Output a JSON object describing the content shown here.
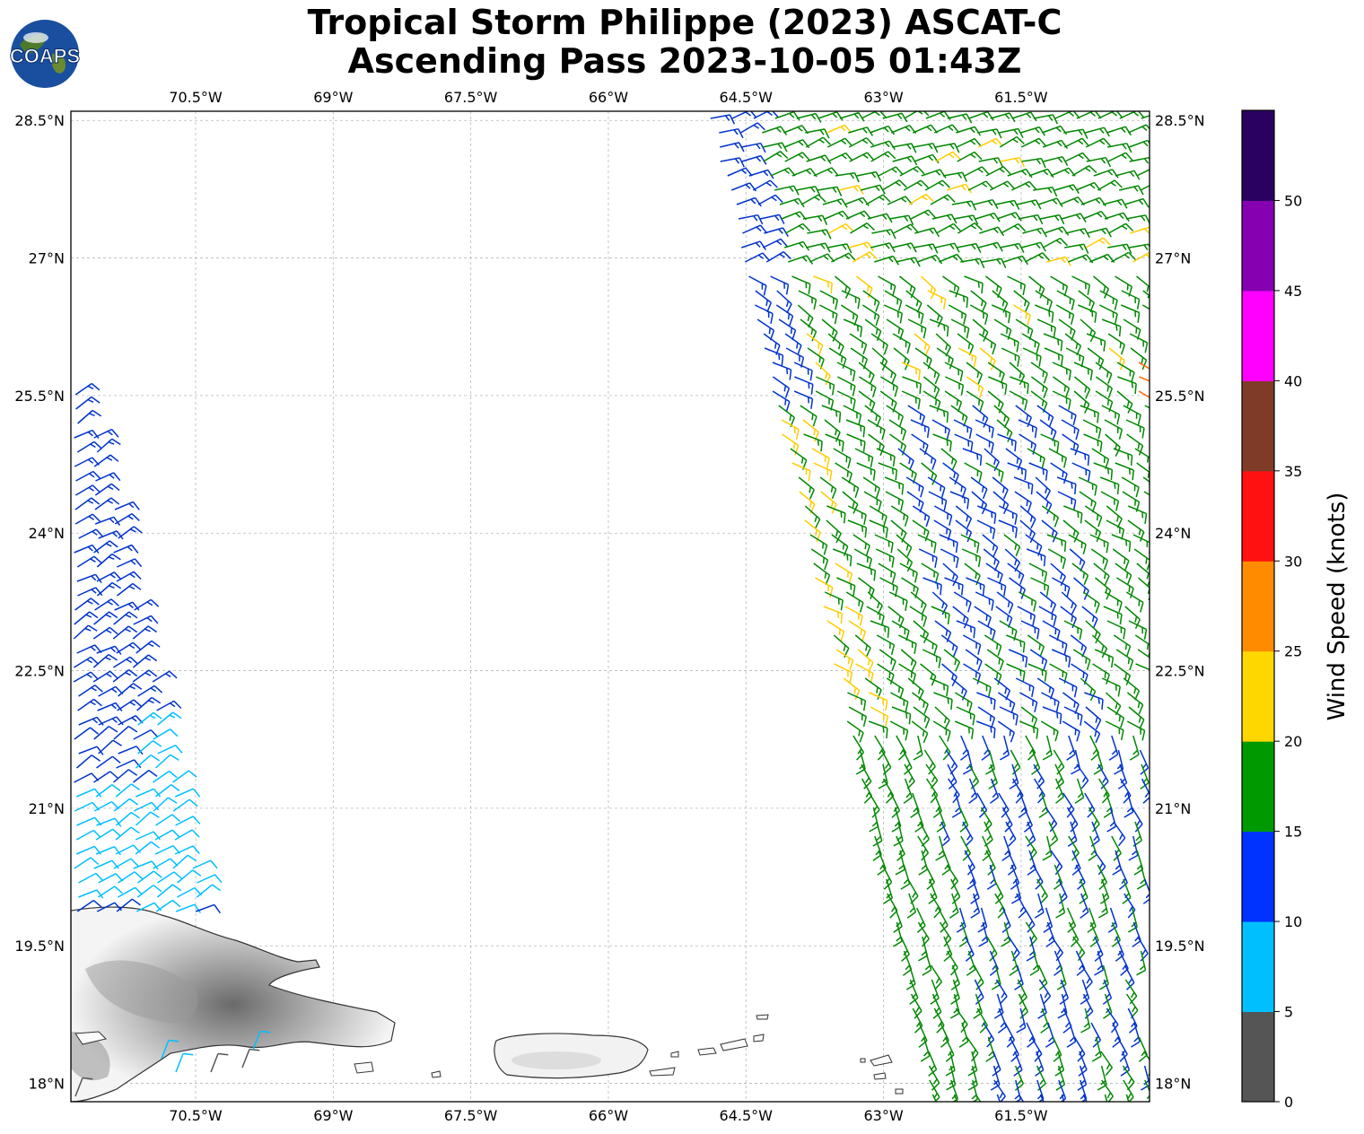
{
  "title": {
    "line1": "Tropical Storm Philippe (2023) ASCAT-C",
    "line2": "Ascending Pass 2023-10-05 01:43Z"
  },
  "logo": {
    "text": "COAPS"
  },
  "map": {
    "lon_range": [
      -71.86,
      -60.1
    ],
    "lat_range": [
      17.8,
      28.6
    ],
    "lon_ticks": [
      {
        "value": -70.5,
        "label": "70.5°W"
      },
      {
        "value": -69,
        "label": "69°W"
      },
      {
        "value": -67.5,
        "label": "67.5°W"
      },
      {
        "value": -66,
        "label": "66°W"
      },
      {
        "value": -64.5,
        "label": "64.5°W"
      },
      {
        "value": -63,
        "label": "63°W"
      },
      {
        "value": -61.5,
        "label": "61.5°W"
      }
    ],
    "lat_ticks": [
      {
        "value": 28.5,
        "label": "28.5°N"
      },
      {
        "value": 27,
        "label": "27°N"
      },
      {
        "value": 25.5,
        "label": "25.5°N"
      },
      {
        "value": 24,
        "label": "24°N"
      },
      {
        "value": 22.5,
        "label": "22.5°N"
      },
      {
        "value": 21,
        "label": "21°N"
      },
      {
        "value": 19.5,
        "label": "19.5°N"
      },
      {
        "value": 18,
        "label": "18°N"
      }
    ],
    "gridlines": true,
    "swaths": [
      {
        "name": "west",
        "lon_min": -71.86,
        "lat_min": 19.6,
        "lat_max": 25.5,
        "color_by_lat": [
          "blue",
          "cyan"
        ]
      },
      {
        "name": "east",
        "lon_max": -60.1,
        "lat_min": 17.8,
        "lat_max": 28.6,
        "colors": [
          "blue",
          "green",
          "yellow"
        ]
      }
    ]
  },
  "colorbar": {
    "label": "Wind Speed (knots)",
    "ticks": [
      "0",
      "5",
      "10",
      "15",
      "20",
      "25",
      "30",
      "35",
      "40",
      "45",
      "50"
    ],
    "bins": [
      {
        "min": 0,
        "max": 5,
        "color": "#555555"
      },
      {
        "min": 5,
        "max": 10,
        "color": "#00bfff"
      },
      {
        "min": 10,
        "max": 15,
        "color": "#0033ff"
      },
      {
        "min": 15,
        "max": 20,
        "color": "#009900"
      },
      {
        "min": 20,
        "max": 25,
        "color": "#ffd700"
      },
      {
        "min": 25,
        "max": 30,
        "color": "#ff8c00"
      },
      {
        "min": 30,
        "max": 35,
        "color": "#ff1111"
      },
      {
        "min": 35,
        "max": 40,
        "color": "#7f3b27"
      },
      {
        "min": 40,
        "max": 45,
        "color": "#ff00ff"
      },
      {
        "min": 45,
        "max": 50,
        "color": "#8400b0"
      },
      {
        "min": 50,
        "max": 55,
        "color": "#2a0060"
      }
    ]
  }
}
